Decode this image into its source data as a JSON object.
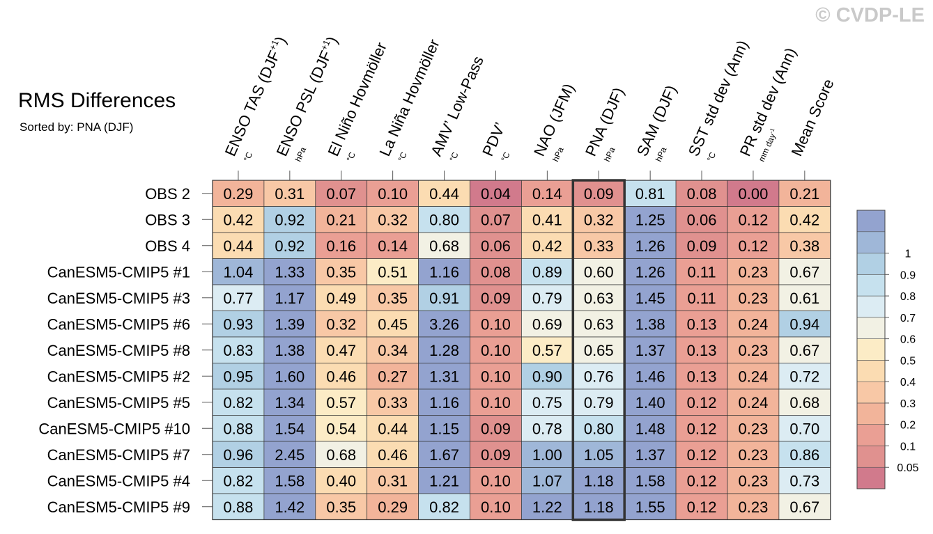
{
  "header": {
    "title": "RMS Differences",
    "subtitle": "Sorted by: PNA (DJF)",
    "watermark": "© CVDP-LE"
  },
  "colors": {
    "scale": [
      "#d17a8c",
      "#e0918f",
      "#ea9f94",
      "#f2b49a",
      "#f8c8a6",
      "#fbdcb2",
      "#fcecc6",
      "#f2f1e4",
      "#dcecf3",
      "#c6e1ee",
      "#b1d0e4",
      "#9fb7d8",
      "#93a3cf"
    ],
    "grid": "#333333",
    "highlight_border": "#333333"
  },
  "chart_data": {
    "type": "heatmap",
    "title": "RMS Differences",
    "subtitle": "Sorted by: PNA (DJF)",
    "highlighted_column": "PNA (DJF)",
    "columns": [
      {
        "name": "ENSO TAS (DJF+1)",
        "main": "ENSO TAS (DJF",
        "sup": "+1",
        "close": ")",
        "unit": "°C",
        "unit_sup": ""
      },
      {
        "name": "ENSO PSL (DJF+1)",
        "main": "ENSO PSL (DJF",
        "sup": "+1",
        "close": ")",
        "unit": "hPa",
        "unit_sup": ""
      },
      {
        "name": "El Niño Hovmöller",
        "main": "El Niño Hovmöller",
        "sup": "",
        "close": "",
        "unit": "°C",
        "unit_sup": ""
      },
      {
        "name": "La Niña Hovmöller",
        "main": "La Niña Hovmöller",
        "sup": "",
        "close": "",
        "unit": "°C",
        "unit_sup": ""
      },
      {
        "name": "AMV’ Low-Pass",
        "main": "AMV’ Low-Pass",
        "sup": "",
        "close": "",
        "unit": "°C",
        "unit_sup": ""
      },
      {
        "name": "PDV’",
        "main": "PDV’",
        "sup": "",
        "close": "",
        "unit": "°C",
        "unit_sup": ""
      },
      {
        "name": "NAO (JFM)",
        "main": "NAO (JFM)",
        "sup": "",
        "close": "",
        "unit": "hPa",
        "unit_sup": ""
      },
      {
        "name": "PNA (DJF)",
        "main": "PNA (DJF)",
        "sup": "",
        "close": "",
        "unit": "hPa",
        "unit_sup": ""
      },
      {
        "name": "SAM (DJF)",
        "main": "SAM (DJF)",
        "sup": "",
        "close": "",
        "unit": "hPa",
        "unit_sup": ""
      },
      {
        "name": "SST std dev (Ann)",
        "main": "SST std dev (Ann)",
        "sup": "",
        "close": "",
        "unit": "°C",
        "unit_sup": ""
      },
      {
        "name": "PR std dev (Ann)",
        "main": "PR std dev (Ann)",
        "sup": "",
        "close": "",
        "unit": "mm day",
        "unit_sup": "-1"
      },
      {
        "name": "Mean Score",
        "main": "Mean Score",
        "sup": "",
        "close": "",
        "unit": "",
        "unit_sup": ""
      }
    ],
    "rows": [
      {
        "label": "OBS 2",
        "values": [
          0.29,
          0.31,
          0.07,
          0.1,
          0.44,
          0.04,
          0.14,
          0.09,
          0.81,
          0.08,
          0.0,
          0.21
        ],
        "text": [
          "0.29",
          "0.31",
          "0.07",
          "0.10",
          "0.44",
          "0.04",
          "0.14",
          "0.09",
          "0.81",
          "0.08",
          "0.00",
          "0.21"
        ]
      },
      {
        "label": "OBS 3",
        "values": [
          0.42,
          0.92,
          0.21,
          0.32,
          0.8,
          0.07,
          0.41,
          0.32,
          1.25,
          0.06,
          0.12,
          0.42
        ],
        "text": [
          "0.42",
          "0.92",
          "0.21",
          "0.32",
          "0.80",
          "0.07",
          "0.41",
          "0.32",
          "1.25",
          "0.06",
          "0.12",
          "0.42"
        ]
      },
      {
        "label": "OBS 4",
        "values": [
          0.44,
          0.92,
          0.16,
          0.14,
          0.68,
          0.06,
          0.42,
          0.33,
          1.26,
          0.09,
          0.12,
          0.38
        ],
        "text": [
          "0.44",
          "0.92",
          "0.16",
          "0.14",
          "0.68",
          "0.06",
          "0.42",
          "0.33",
          "1.26",
          "0.09",
          "0.12",
          "0.38"
        ]
      },
      {
        "label": "CanESM5-CMIP5 #1",
        "values": [
          1.04,
          1.33,
          0.35,
          0.51,
          1.16,
          0.08,
          0.89,
          0.6,
          1.26,
          0.11,
          0.23,
          0.67
        ],
        "text": [
          "1.04",
          "1.33",
          "0.35",
          "0.51",
          "1.16",
          "0.08",
          "0.89",
          "0.60",
          "1.26",
          "0.11",
          "0.23",
          "0.67"
        ]
      },
      {
        "label": "CanESM5-CMIP5 #3",
        "values": [
          0.77,
          1.17,
          0.49,
          0.35,
          0.91,
          0.09,
          0.79,
          0.63,
          1.45,
          0.11,
          0.23,
          0.61
        ],
        "text": [
          "0.77",
          "1.17",
          "0.49",
          "0.35",
          "0.91",
          "0.09",
          "0.79",
          "0.63",
          "1.45",
          "0.11",
          "0.23",
          "0.61"
        ]
      },
      {
        "label": "CanESM5-CMIP5 #6",
        "values": [
          0.93,
          1.39,
          0.32,
          0.45,
          3.26,
          0.1,
          0.69,
          0.63,
          1.38,
          0.13,
          0.24,
          0.94
        ],
        "text": [
          "0.93",
          "1.39",
          "0.32",
          "0.45",
          "3.26",
          "0.10",
          "0.69",
          "0.63",
          "1.38",
          "0.13",
          "0.24",
          "0.94"
        ]
      },
      {
        "label": "CanESM5-CMIP5 #8",
        "values": [
          0.83,
          1.38,
          0.47,
          0.34,
          1.28,
          0.1,
          0.57,
          0.65,
          1.37,
          0.13,
          0.23,
          0.67
        ],
        "text": [
          "0.83",
          "1.38",
          "0.47",
          "0.34",
          "1.28",
          "0.10",
          "0.57",
          "0.65",
          "1.37",
          "0.13",
          "0.23",
          "0.67"
        ]
      },
      {
        "label": "CanESM5-CMIP5 #2",
        "values": [
          0.95,
          1.6,
          0.46,
          0.27,
          1.31,
          0.1,
          0.9,
          0.76,
          1.46,
          0.13,
          0.24,
          0.72
        ],
        "text": [
          "0.95",
          "1.60",
          "0.46",
          "0.27",
          "1.31",
          "0.10",
          "0.90",
          "0.76",
          "1.46",
          "0.13",
          "0.24",
          "0.72"
        ]
      },
      {
        "label": "CanESM5-CMIP5 #5",
        "values": [
          0.82,
          1.34,
          0.57,
          0.33,
          1.16,
          0.1,
          0.75,
          0.79,
          1.4,
          0.12,
          0.24,
          0.68
        ],
        "text": [
          "0.82",
          "1.34",
          "0.57",
          "0.33",
          "1.16",
          "0.10",
          "0.75",
          "0.79",
          "1.40",
          "0.12",
          "0.24",
          "0.68"
        ]
      },
      {
        "label": "CanESM5-CMIP5 #10",
        "values": [
          0.88,
          1.54,
          0.54,
          0.44,
          1.15,
          0.09,
          0.78,
          0.8,
          1.48,
          0.12,
          0.23,
          0.7
        ],
        "text": [
          "0.88",
          "1.54",
          "0.54",
          "0.44",
          "1.15",
          "0.09",
          "0.78",
          "0.80",
          "1.48",
          "0.12",
          "0.23",
          "0.70"
        ]
      },
      {
        "label": "CanESM5-CMIP5 #7",
        "values": [
          0.96,
          2.45,
          0.68,
          0.46,
          1.67,
          0.09,
          1.0,
          1.05,
          1.37,
          0.12,
          0.23,
          0.86
        ],
        "text": [
          "0.96",
          "2.45",
          "0.68",
          "0.46",
          "1.67",
          "0.09",
          "1.00",
          "1.05",
          "1.37",
          "0.12",
          "0.23",
          "0.86"
        ]
      },
      {
        "label": "CanESM5-CMIP5 #4",
        "values": [
          0.82,
          1.58,
          0.4,
          0.31,
          1.21,
          0.1,
          1.07,
          1.18,
          1.58,
          0.12,
          0.23,
          0.73
        ],
        "text": [
          "0.82",
          "1.58",
          "0.40",
          "0.31",
          "1.21",
          "0.10",
          "1.07",
          "1.18",
          "1.58",
          "0.12",
          "0.23",
          "0.73"
        ]
      },
      {
        "label": "CanESM5-CMIP5 #9",
        "values": [
          0.88,
          1.42,
          0.35,
          0.29,
          0.82,
          0.1,
          1.22,
          1.18,
          1.55,
          0.12,
          0.23,
          0.67
        ],
        "text": [
          "0.88",
          "1.42",
          "0.35",
          "0.29",
          "0.82",
          "0.10",
          "1.22",
          "1.18",
          "1.55",
          "0.12",
          "0.23",
          "0.67"
        ]
      }
    ],
    "colorbar": {
      "levels": [
        0,
        0.05,
        0.1,
        0.2,
        0.3,
        0.4,
        0.5,
        0.6,
        0.7,
        0.8,
        0.9,
        1
      ],
      "labels": [
        "0.05",
        "0.1",
        "0.2",
        "0.3",
        "0.4",
        "0.5",
        "0.6",
        "0.7",
        "0.8",
        "0.9",
        "1"
      ]
    }
  }
}
